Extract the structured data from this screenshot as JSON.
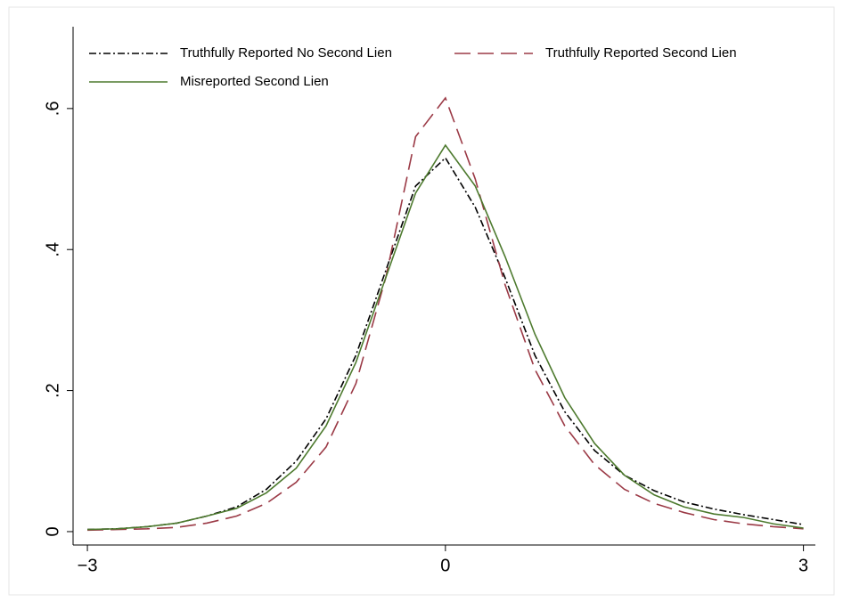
{
  "chart_data": {
    "type": "line",
    "x": [
      -3,
      -2.75,
      -2.5,
      -2.25,
      -2,
      -1.75,
      -1.5,
      -1.25,
      -1,
      -0.75,
      -0.5,
      -0.25,
      0,
      0.25,
      0.5,
      0.75,
      1,
      1.25,
      1.5,
      1.75,
      2,
      2.25,
      2.5,
      2.75,
      3
    ],
    "series": [
      {
        "name": "Truthfully Reported No Second Lien",
        "color": "#000000",
        "dash": "dashdot",
        "values": [
          0.003,
          0.004,
          0.007,
          0.012,
          0.022,
          0.035,
          0.06,
          0.1,
          0.16,
          0.25,
          0.37,
          0.49,
          0.53,
          0.46,
          0.36,
          0.25,
          0.17,
          0.115,
          0.08,
          0.058,
          0.042,
          0.032,
          0.024,
          0.017,
          0.01
        ]
      },
      {
        "name": "Truthfully Reported Second Lien",
        "color": "#9b3a46",
        "dash": "longdash",
        "values": [
          0.002,
          0.003,
          0.004,
          0.006,
          0.012,
          0.022,
          0.04,
          0.07,
          0.12,
          0.21,
          0.36,
          0.56,
          0.615,
          0.5,
          0.35,
          0.23,
          0.15,
          0.095,
          0.06,
          0.04,
          0.027,
          0.017,
          0.011,
          0.007,
          0.004
        ]
      },
      {
        "name": "Misreported Second Lien",
        "color": "#4d7a2e",
        "dash": "solid",
        "values": [
          0.003,
          0.004,
          0.007,
          0.012,
          0.022,
          0.033,
          0.055,
          0.09,
          0.15,
          0.24,
          0.36,
          0.48,
          0.548,
          0.49,
          0.39,
          0.28,
          0.19,
          0.125,
          0.08,
          0.052,
          0.035,
          0.025,
          0.02,
          0.011,
          0.005
        ]
      }
    ],
    "xlim": [
      -3.12,
      3.1
    ],
    "xticks": [
      {
        "value": -3,
        "label": "−3"
      },
      0,
      3
    ],
    "ylim": [
      -0.019,
      0.716
    ],
    "yticks": [
      0,
      {
        "value": 0.2,
        "label": ".2"
      },
      {
        "value": 0.4,
        "label": ".4"
      },
      {
        "value": 0.6,
        "label": ".6"
      }
    ],
    "legend": "top"
  }
}
